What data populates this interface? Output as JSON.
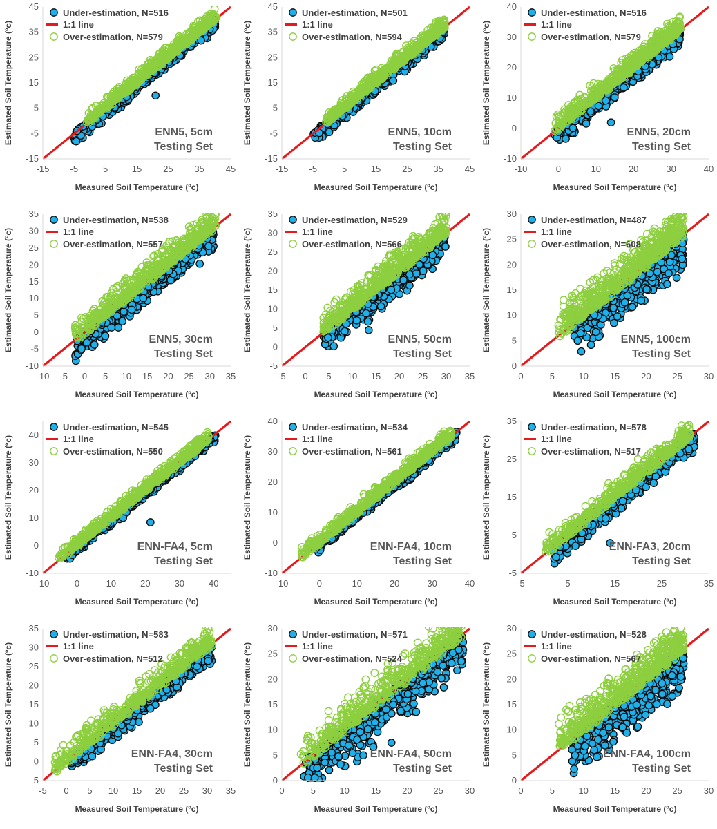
{
  "colors": {
    "under_fill": "#1fb0ea",
    "under_stroke": "#0a0a0a",
    "over_stroke": "#8dcf3f",
    "line": "#e41a1c",
    "text": "#404040",
    "ticks": "#595959"
  },
  "chart_data": [
    {
      "type": "scatter",
      "title": "",
      "label_line1": "ENN5,  5cm",
      "label_line2": "Testing Set",
      "xlabel": "Measured Soil Temperature (ºc)",
      "ylabel": "Estimated Soil Temperature (ºc)",
      "xlim": [
        -15,
        45
      ],
      "ylim": [
        -15,
        45
      ],
      "xticks": [
        -15,
        -5,
        5,
        15,
        25,
        35,
        45
      ],
      "yticks": [
        -15,
        -5,
        5,
        15,
        25,
        35,
        45
      ],
      "series": [
        {
          "name": "Under-estimation, N=516",
          "marker": "filled-circle",
          "count": 516,
          "band_low": -5,
          "band_high": 0,
          "x_range": [
            -5.2,
            40
          ],
          "outliers": [
            [
              21,
              10
            ]
          ]
        },
        {
          "name": "1:1 line",
          "marker": "line"
        },
        {
          "name": "Over-estimation, N=579",
          "marker": "open-circle",
          "count": 579,
          "band_low": 0,
          "band_high": 5,
          "x_range": [
            -1,
            40.5
          ],
          "outliers": []
        }
      ]
    },
    {
      "type": "scatter",
      "title": "",
      "label_line1": "ENN5,  10cm",
      "label_line2": "Testing Set",
      "xlabel": "Measured Soil Temperature (ºc)",
      "ylabel": "Estimated Soil Temperature (ºc)",
      "xlim": [
        -15,
        45
      ],
      "ylim": [
        -15,
        45
      ],
      "xticks": [
        -15,
        -5,
        5,
        15,
        25,
        35,
        45
      ],
      "yticks": [
        -15,
        -5,
        5,
        15,
        25,
        35,
        45
      ],
      "series": [
        {
          "name": "Under-estimation, N=501",
          "marker": "filled-circle",
          "count": 501,
          "band_low": -5,
          "band_high": 0,
          "x_range": [
            -5.2,
            37
          ],
          "outliers": []
        },
        {
          "name": "1:1 line",
          "marker": "line"
        },
        {
          "name": "Over-estimation, N=594",
          "marker": "open-circle",
          "count": 594,
          "band_low": 0,
          "band_high": 5,
          "x_range": [
            -1,
            37
          ],
          "outliers": []
        }
      ]
    },
    {
      "type": "scatter",
      "title": "",
      "label_line1": "ENN5,  20cm",
      "label_line2": "Testing Set",
      "xlabel": "Measured Soil Temperature (ºc)",
      "ylabel": "Estimated Soil Temperature (ºc)",
      "xlim": [
        -10,
        40
      ],
      "ylim": [
        -10,
        40
      ],
      "xticks": [
        -10,
        0,
        10,
        20,
        30,
        40
      ],
      "yticks": [
        -10,
        0,
        10,
        20,
        30,
        40
      ],
      "series": [
        {
          "name": "Under-estimation, N=516",
          "marker": "filled-circle",
          "count": 516,
          "band_low": -6,
          "band_high": 0,
          "x_range": [
            -1.5,
            32.5
          ],
          "outliers": [
            [
              14,
              2
            ]
          ]
        },
        {
          "name": "1:1 line",
          "marker": "line"
        },
        {
          "name": "Over-estimation, N=579",
          "marker": "open-circle",
          "count": 579,
          "band_low": 0,
          "band_high": 6,
          "x_range": [
            -1,
            32.5
          ],
          "outliers": []
        }
      ]
    },
    {
      "type": "scatter",
      "title": "",
      "label_line1": "ENN5,  30cm",
      "label_line2": "Testing Set",
      "xlabel": "Measured Soil Temperature (ºc)",
      "ylabel": "Estimated Soil Temperature (ºc)",
      "xlim": [
        -10,
        35
      ],
      "ylim": [
        -10,
        35
      ],
      "xticks": [
        -10,
        -5,
        0,
        5,
        10,
        15,
        20,
        25,
        30,
        35
      ],
      "yticks": [
        -10,
        -5,
        0,
        5,
        10,
        15,
        20,
        25,
        30,
        35
      ],
      "series": [
        {
          "name": "Under-estimation, N=538",
          "marker": "filled-circle",
          "count": 538,
          "band_low": -7,
          "band_high": 0,
          "x_range": [
            -2.5,
            31
          ],
          "outliers": []
        },
        {
          "name": "1:1 line",
          "marker": "line"
        },
        {
          "name": "Over-estimation, N=557",
          "marker": "open-circle",
          "count": 557,
          "band_low": 0,
          "band_high": 7,
          "x_range": [
            -2.5,
            31.5
          ],
          "outliers": []
        }
      ]
    },
    {
      "type": "scatter",
      "title": "",
      "label_line1": "ENN5,  50cm",
      "label_line2": "Testing Set",
      "xlabel": "Measured Soil Temperature (ºc)",
      "ylabel": "Estimated Soil Temperature (ºc)",
      "xlim": [
        -5,
        35
      ],
      "ylim": [
        -5,
        35
      ],
      "xticks": [
        -5,
        0,
        5,
        10,
        15,
        20,
        25,
        30,
        35
      ],
      "yticks": [
        -5,
        0,
        5,
        10,
        15,
        20,
        25,
        30,
        35
      ],
      "series": [
        {
          "name": "Under-estimation, N=529",
          "marker": "filled-circle",
          "count": 529,
          "band_low": -7,
          "band_high": 0,
          "x_range": [
            3.5,
            30
          ],
          "outliers": [
            [
              13.5,
              4.5
            ]
          ]
        },
        {
          "name": "1:1 line",
          "marker": "line"
        },
        {
          "name": "Over-estimation, N=566",
          "marker": "open-circle",
          "count": 566,
          "band_low": 0,
          "band_high": 7,
          "x_range": [
            3.5,
            30
          ],
          "outliers": []
        }
      ]
    },
    {
      "type": "scatter",
      "title": "",
      "label_line1": "ENN5,  100cm",
      "label_line2": "Testing Set",
      "xlabel": "Measured Soil Temperature (ºc)",
      "ylabel": "Estimated Soil Temperature (ºc)",
      "xlim": [
        0,
        30
      ],
      "ylim": [
        0,
        30
      ],
      "xticks": [
        0,
        5,
        10,
        15,
        20,
        25,
        30
      ],
      "yticks": [
        0,
        5,
        10,
        15,
        20,
        25,
        30
      ],
      "series": [
        {
          "name": "Under-estimation, N=487",
          "marker": "filled-circle",
          "count": 487,
          "band_low": -8,
          "band_high": 0,
          "x_range": [
            8.5,
            26
          ],
          "outliers": []
        },
        {
          "name": "1:1 line",
          "marker": "line"
        },
        {
          "name": "Over-estimation, N=608",
          "marker": "open-circle",
          "count": 608,
          "band_low": 0,
          "band_high": 7,
          "x_range": [
            6,
            26
          ],
          "outliers": [
            [
              6.3,
              9.2
            ]
          ]
        }
      ]
    },
    {
      "type": "scatter",
      "title": "",
      "label_line1": "ENN-FA4,  5cm",
      "label_line2": "Testing Set",
      "xlabel": "Measured Soil Temperature (ºc)",
      "ylabel": "Estimated Soil Temperature (ºc)",
      "xlim": [
        -10,
        45
      ],
      "ylim": [
        -10,
        45
      ],
      "xticks": [
        -10,
        0,
        10,
        20,
        30,
        40
      ],
      "yticks": [
        -10,
        0,
        10,
        20,
        30,
        40
      ],
      "series": [
        {
          "name": "Under-estimation, N=545",
          "marker": "filled-circle",
          "count": 545,
          "band_low": -3,
          "band_high": 0,
          "x_range": [
            -3,
            40.5
          ],
          "outliers": [
            [
              21.5,
              8.5
            ]
          ]
        },
        {
          "name": "1:1 line",
          "marker": "line"
        },
        {
          "name": "Over-estimation, N=550",
          "marker": "open-circle",
          "count": 550,
          "band_low": 0,
          "band_high": 4,
          "x_range": [
            -5.5,
            38.5
          ],
          "outliers": []
        }
      ]
    },
    {
      "type": "scatter",
      "title": "",
      "label_line1": "ENN-FA4,  10cm",
      "label_line2": "Testing Set",
      "xlabel": "Measured Soil Temperature (ºc)",
      "ylabel": "Estimated Soil Temperature (ºc)",
      "xlim": [
        -10,
        40
      ],
      "ylim": [
        -10,
        40
      ],
      "xticks": [
        -10,
        0,
        10,
        20,
        30,
        40
      ],
      "yticks": [
        -10,
        0,
        10,
        20,
        30,
        40
      ],
      "series": [
        {
          "name": "Under-estimation, N=534",
          "marker": "filled-circle",
          "count": 534,
          "band_low": -3,
          "band_high": 0,
          "x_range": [
            -1,
            36.5
          ],
          "outliers": []
        },
        {
          "name": "1:1 line",
          "marker": "line"
        },
        {
          "name": "Over-estimation, N=561",
          "marker": "open-circle",
          "count": 561,
          "band_low": 0,
          "band_high": 4,
          "x_range": [
            -5,
            35
          ],
          "outliers": []
        }
      ]
    },
    {
      "type": "scatter",
      "title": "",
      "label_line1": "ENN-FA3,  20cm",
      "label_line2": "Testing Set",
      "xlabel": "Measured Soil Temperature (ºc)",
      "ylabel": "Estimated Soil Temperature (ºc)",
      "xlim": [
        -5,
        35
      ],
      "ylim": [
        -5,
        35
      ],
      "xticks": [
        -5,
        5,
        15,
        25,
        35
      ],
      "yticks": [
        -5,
        5,
        15,
        25,
        35
      ],
      "series": [
        {
          "name": "Under-estimation, N=578",
          "marker": "filled-circle",
          "count": 578,
          "band_low": -5,
          "band_high": 0,
          "x_range": [
            2,
            32
          ],
          "outliers": [
            [
              14,
              3
            ]
          ]
        },
        {
          "name": "1:1 line",
          "marker": "line"
        },
        {
          "name": "Over-estimation, N=517",
          "marker": "open-circle",
          "count": 517,
          "band_low": 0,
          "band_high": 5,
          "x_range": [
            0,
            31
          ],
          "outliers": []
        }
      ]
    },
    {
      "type": "scatter",
      "title": "",
      "label_line1": "ENN-FA4,  30cm",
      "label_line2": "Testing Set",
      "xlabel": "Measured Soil Temperature (ºc)",
      "ylabel": "Estimated Soil Temperature (ºc)",
      "xlim": [
        -5,
        35
      ],
      "ylim": [
        -5,
        35
      ],
      "xticks": [
        -5,
        0,
        5,
        10,
        15,
        20,
        25,
        30,
        35
      ],
      "yticks": [
        -5,
        0,
        5,
        10,
        15,
        20,
        25,
        30,
        35
      ],
      "series": [
        {
          "name": "Under-estimation, N=583",
          "marker": "filled-circle",
          "count": 583,
          "band_low": -5,
          "band_high": 0,
          "x_range": [
            1,
            31
          ],
          "outliers": []
        },
        {
          "name": "1:1 line",
          "marker": "line"
        },
        {
          "name": "Over-estimation, N=512",
          "marker": "open-circle",
          "count": 512,
          "band_low": 0,
          "band_high": 6,
          "x_range": [
            -2.5,
            31
          ],
          "outliers": []
        }
      ]
    },
    {
      "type": "scatter",
      "title": "",
      "label_line1": "ENN-FA4,  50cm",
      "label_line2": "Testing Set",
      "xlabel": "Measured Soil Temperature (ºc)",
      "ylabel": "Estimated Soil Temperature (ºc)",
      "xlim": [
        0,
        30
      ],
      "ylim": [
        0,
        30
      ],
      "xticks": [
        0,
        5,
        10,
        15,
        20,
        25,
        30
      ],
      "yticks": [
        0,
        5,
        10,
        15,
        20,
        25,
        30
      ],
      "series": [
        {
          "name": "Under-estimation, N=571",
          "marker": "filled-circle",
          "count": 571,
          "band_low": -8,
          "band_high": 0,
          "x_range": [
            3.5,
            29
          ],
          "outliers": [
            [
              13,
              5
            ],
            [
              17.5,
              7.5
            ]
          ]
        },
        {
          "name": "1:1 line",
          "marker": "line"
        },
        {
          "name": "Over-estimation, N=524",
          "marker": "open-circle",
          "count": 524,
          "band_low": 0,
          "band_high": 7,
          "x_range": [
            3,
            29
          ],
          "outliers": []
        }
      ]
    },
    {
      "type": "scatter",
      "title": "",
      "label_line1": "ENN-FA4,  100cm",
      "label_line2": "Testing Set",
      "xlabel": "Measured Soil Temperature (ºc)",
      "ylabel": "Estimated Soil Temperature (ºc)",
      "xlim": [
        0,
        30
      ],
      "ylim": [
        0,
        30
      ],
      "xticks": [
        0,
        5,
        10,
        15,
        20,
        25,
        30
      ],
      "yticks": [
        0,
        5,
        10,
        15,
        20,
        25,
        30
      ],
      "series": [
        {
          "name": "Under-estimation, N=528",
          "marker": "filled-circle",
          "count": 528,
          "band_low": -9,
          "band_high": 0,
          "x_range": [
            8,
            26
          ],
          "outliers": [
            [
              8.5,
              2.3
            ]
          ]
        },
        {
          "name": "1:1 line",
          "marker": "line"
        },
        {
          "name": "Over-estimation, N=567",
          "marker": "open-circle",
          "count": 567,
          "band_low": 0,
          "band_high": 7,
          "x_range": [
            6,
            26
          ],
          "outliers": [
            [
              6.3,
              9.5
            ]
          ]
        }
      ]
    }
  ]
}
